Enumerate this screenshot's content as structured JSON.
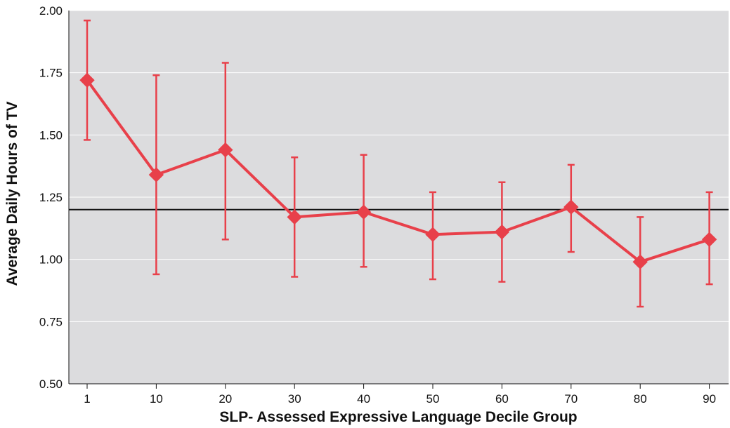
{
  "chart_data": {
    "type": "line",
    "title": "",
    "xlabel": "SLP- Assessed Expressive Language Decile Group",
    "ylabel": "Average Daily Hours of TV",
    "categories": [
      "1",
      "10",
      "20",
      "30",
      "40",
      "50",
      "60",
      "70",
      "80",
      "90"
    ],
    "series": [
      {
        "values": [
          1.72,
          1.34,
          1.44,
          1.17,
          1.19,
          1.1,
          1.11,
          1.21,
          0.99,
          1.08
        ],
        "error_low": [
          1.48,
          0.94,
          1.08,
          0.93,
          0.97,
          0.92,
          0.91,
          1.03,
          0.81,
          0.9
        ],
        "error_high": [
          1.96,
          1.74,
          1.79,
          1.41,
          1.42,
          1.27,
          1.31,
          1.38,
          1.17,
          1.27
        ],
        "marker": "diamond",
        "color": "#e8404a"
      }
    ],
    "reference_line": {
      "y": 1.2,
      "color": "#111111"
    },
    "ylim": [
      0.5,
      2.0
    ],
    "yticks": [
      "0.50",
      "0.75",
      "1.00",
      "1.25",
      "1.50",
      "1.75",
      "2.00"
    ],
    "grid": true,
    "grid_color": "#ffffff",
    "plot_background": "#dcdcde",
    "legend": "none"
  }
}
